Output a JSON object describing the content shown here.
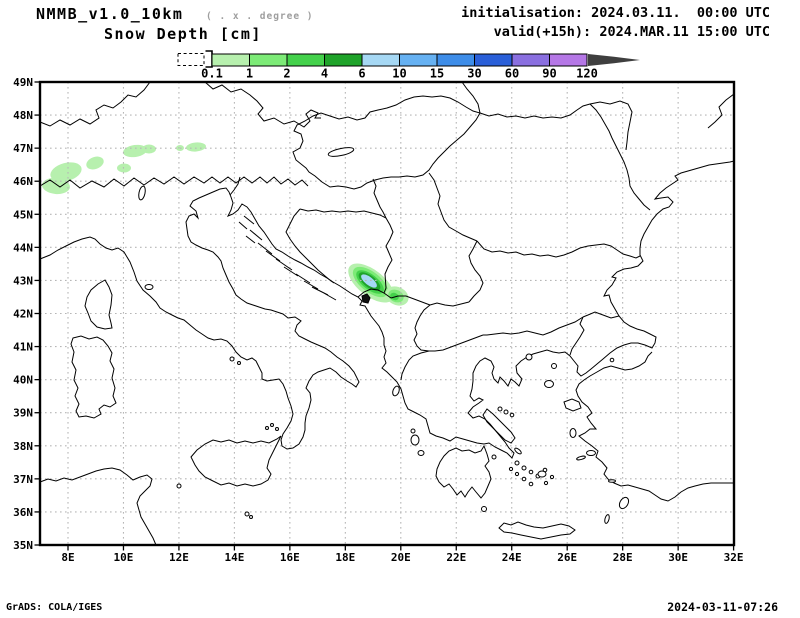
{
  "header": {
    "model_title": "NMMB_v1.0_10km",
    "resolution_note": "( . x . degree )",
    "variable_title": "Snow Depth [cm]",
    "init_label": "initialisation: 2024.03.11.  00:00 UTC",
    "valid_label": "valid(+15h): 2024.MAR.11 15:00 UTC"
  },
  "legend": {
    "unit": "cm",
    "levels": [
      "0.1",
      "1",
      "2",
      "4",
      "6",
      "10",
      "15",
      "30",
      "60",
      "90",
      "120"
    ],
    "colors": [
      "#b7f0ae",
      "#7deb77",
      "#44d14b",
      "#1fa32a",
      "#a6d8f4",
      "#66b1f2",
      "#3e8de8",
      "#2a5fd8",
      "#8a6fe0",
      "#b577e6"
    ],
    "overflow_arrow_color": "#3f3f3f"
  },
  "axes": {
    "lat_labels": [
      "49N",
      "48N",
      "47N",
      "46N",
      "45N",
      "44N",
      "43N",
      "42N",
      "41N",
      "40N",
      "39N",
      "38N",
      "37N",
      "36N",
      "35N"
    ],
    "lon_labels": [
      "8E",
      "10E",
      "12E",
      "14E",
      "16E",
      "18E",
      "20E",
      "22E",
      "24E",
      "26E",
      "28E",
      "30E",
      "32E"
    ]
  },
  "map": {
    "coastline_color": "#000000",
    "grid_color": "#b6b6b6",
    "background": "#ffffff",
    "snow_areas": [
      {
        "region": "Alps (~46-47N, 8-13E)",
        "depth_range_cm": "0.1-1"
      },
      {
        "region": "Dinaric Alps / Montenegro (~43N, 18.5-19.5E)",
        "depth_range_cm": "0.1 to 6-10 core"
      }
    ]
  },
  "footer": {
    "left": "GrADS: COLA/IGES",
    "right": "2024-03-11-07:26"
  }
}
